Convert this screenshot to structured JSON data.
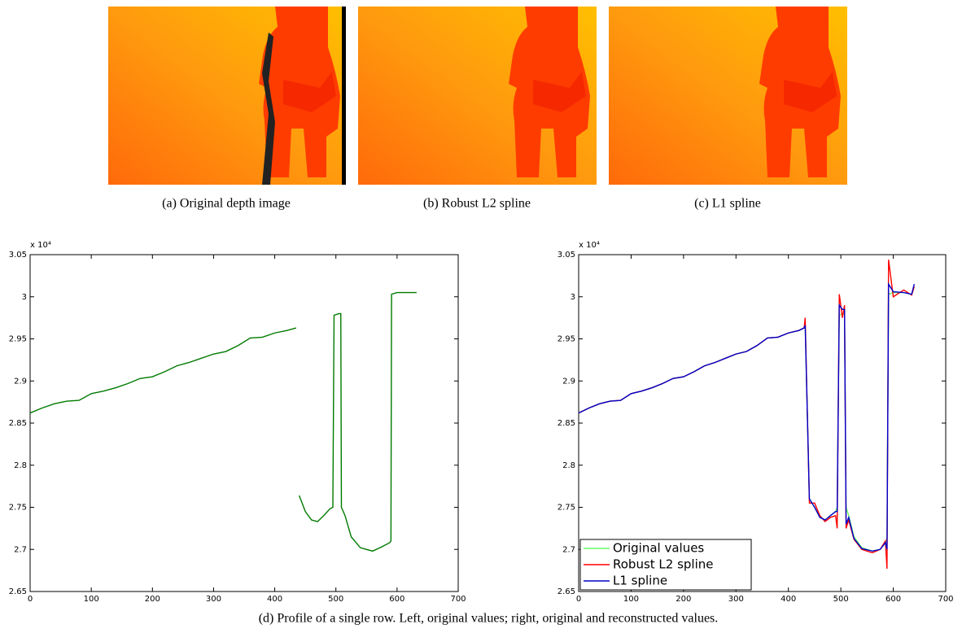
{
  "figure": {
    "subcaptions": [
      "(a) Original depth image",
      "(b) Robust L2 spline",
      "(c) L1 spline"
    ],
    "caption": "(d) Profile of a single row. Left, original values; right, original and reconstructed values."
  },
  "chart_data": [
    {
      "type": "line",
      "y_multiplier_label": "x 10⁴",
      "x": [
        0,
        20,
        40,
        60,
        80,
        100,
        120,
        140,
        160,
        180,
        200,
        220,
        240,
        260,
        280,
        300,
        320,
        340,
        360,
        380,
        400,
        420,
        435,
        437,
        440,
        450,
        460,
        470,
        480,
        490,
        495,
        497,
        505,
        508,
        509,
        515,
        525,
        540,
        560,
        575,
        588,
        590,
        591,
        600,
        632
      ],
      "series": [
        {
          "color": "#007a00",
          "values": [
            2.862,
            2.868,
            2.873,
            2.876,
            2.877,
            2.885,
            2.888,
            2.892,
            2.897,
            2.903,
            2.905,
            2.911,
            2.918,
            2.922,
            2.927,
            2.932,
            2.935,
            2.942,
            2.951,
            2.952,
            2.957,
            2.96,
            2.963,
            null,
            2.764,
            2.745,
            2.735,
            2.733,
            2.74,
            2.748,
            2.75,
            2.978,
            2.98,
            2.98,
            2.75,
            2.74,
            2.715,
            2.702,
            2.698,
            2.703,
            2.708,
            2.71,
            3.003,
            3.005,
            3.005
          ]
        }
      ],
      "xlim": [
        0,
        700
      ],
      "xticks": [
        0,
        100,
        200,
        300,
        400,
        500,
        600,
        700
      ],
      "ylim": [
        2.65,
        3.05
      ],
      "yticks": [
        2.65,
        2.7,
        2.75,
        2.8,
        2.85,
        2.9,
        2.95,
        3,
        3.05
      ]
    },
    {
      "type": "line",
      "y_multiplier_label": "x 10⁴",
      "x": [
        0,
        20,
        40,
        60,
        80,
        100,
        120,
        140,
        160,
        180,
        200,
        220,
        240,
        260,
        280,
        300,
        320,
        340,
        360,
        380,
        400,
        420,
        430,
        432,
        440,
        450,
        460,
        470,
        480,
        490,
        493,
        497,
        503,
        507,
        510,
        515,
        525,
        540,
        560,
        575,
        585,
        588,
        591,
        600,
        620,
        635,
        640
      ],
      "series": [
        {
          "name": "Original values",
          "color": "#66ff66",
          "values": [
            2.862,
            2.868,
            2.873,
            2.876,
            2.877,
            2.885,
            2.888,
            2.892,
            2.897,
            2.903,
            2.905,
            2.911,
            2.918,
            2.922,
            2.927,
            2.932,
            2.935,
            2.942,
            2.951,
            2.952,
            2.957,
            2.96,
            2.963,
            2.965,
            2.76,
            2.75,
            2.738,
            2.735,
            2.74,
            2.745,
            2.75,
            2.978,
            2.98,
            2.98,
            2.75,
            2.74,
            2.715,
            2.702,
            2.698,
            2.7,
            2.708,
            2.71,
            3.003,
            3.005,
            3.005,
            3.003,
            3.012
          ]
        },
        {
          "name": "Robust L2 spline",
          "color": "#ff0000",
          "values": [
            2.862,
            2.868,
            2.873,
            2.876,
            2.877,
            2.885,
            2.888,
            2.892,
            2.897,
            2.903,
            2.905,
            2.911,
            2.918,
            2.922,
            2.927,
            2.932,
            2.935,
            2.942,
            2.951,
            2.952,
            2.957,
            2.96,
            2.963,
            2.975,
            2.755,
            2.755,
            2.74,
            2.733,
            2.738,
            2.74,
            2.725,
            3.003,
            2.975,
            2.99,
            2.725,
            2.735,
            2.712,
            2.7,
            2.696,
            2.7,
            2.71,
            2.677,
            3.044,
            3.0,
            3.008,
            3.002,
            3.012
          ]
        },
        {
          "name": "L1 spline",
          "color": "#0000cc",
          "values": [
            2.862,
            2.868,
            2.873,
            2.876,
            2.877,
            2.885,
            2.888,
            2.892,
            2.897,
            2.903,
            2.905,
            2.911,
            2.918,
            2.922,
            2.927,
            2.932,
            2.935,
            2.942,
            2.951,
            2.952,
            2.957,
            2.96,
            2.963,
            2.966,
            2.76,
            2.75,
            2.738,
            2.735,
            2.74,
            2.745,
            2.745,
            2.99,
            2.985,
            2.985,
            2.73,
            2.738,
            2.713,
            2.701,
            2.698,
            2.7,
            2.708,
            2.7,
            3.015,
            3.006,
            3.005,
            3.003,
            3.015
          ]
        }
      ],
      "legend": "lower left",
      "xlim": [
        0,
        700
      ],
      "xticks": [
        0,
        100,
        200,
        300,
        400,
        500,
        600,
        700
      ],
      "ylim": [
        2.65,
        3.05
      ],
      "yticks": [
        2.65,
        2.7,
        2.75,
        2.8,
        2.85,
        2.9,
        2.95,
        3,
        3.05
      ]
    }
  ]
}
